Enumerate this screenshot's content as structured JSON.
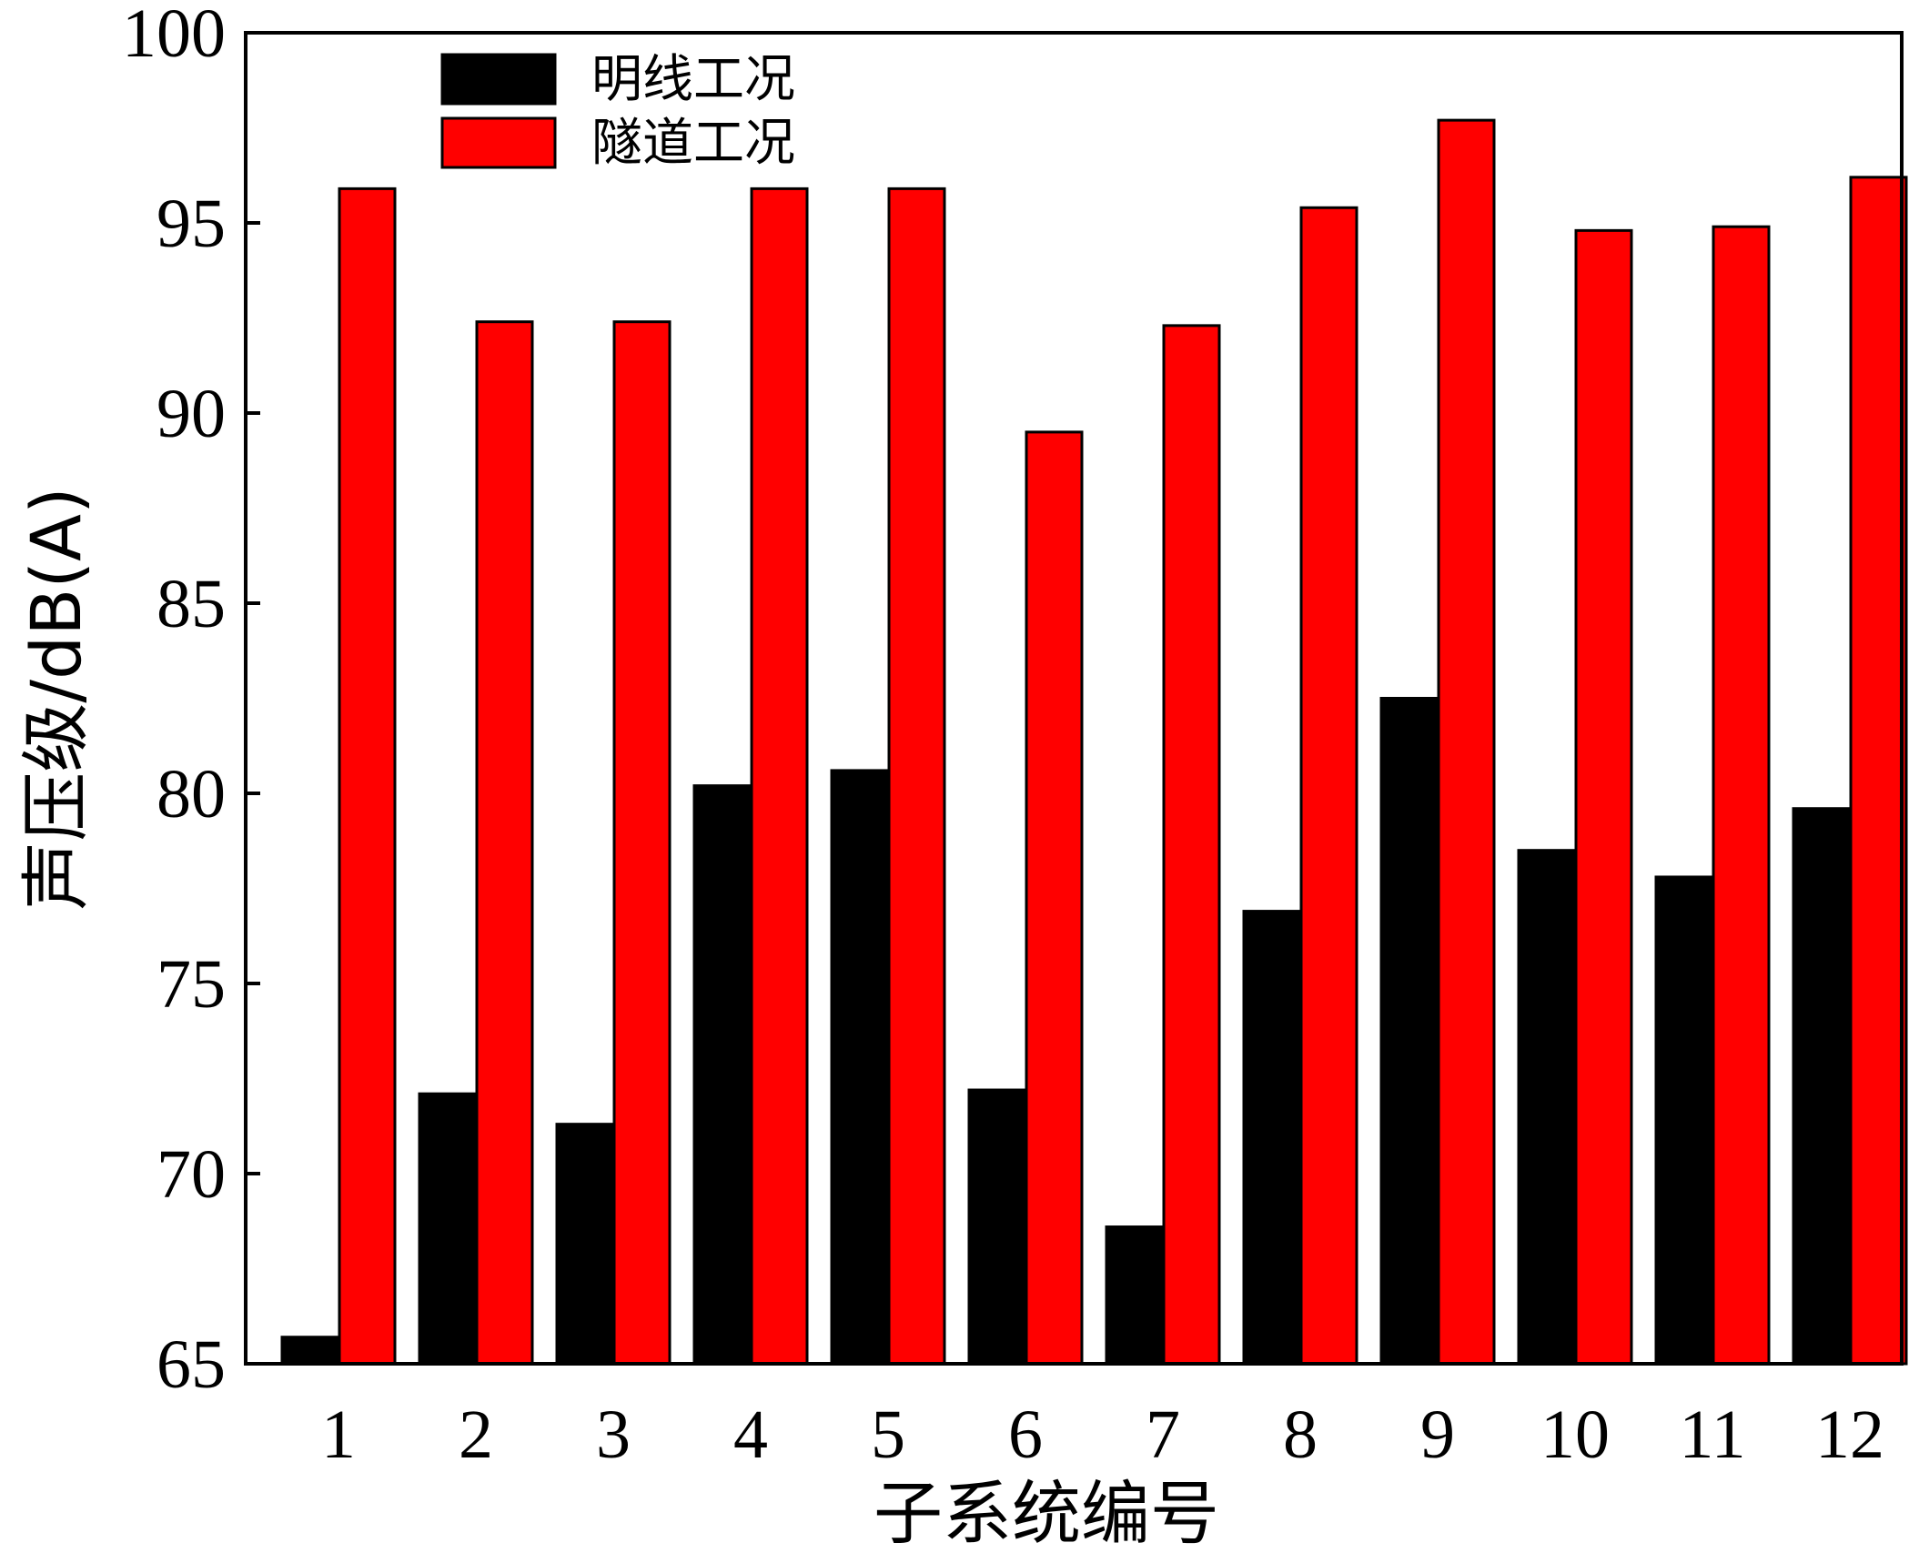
{
  "chart_data": {
    "type": "bar",
    "categories": [
      "1",
      "2",
      "3",
      "4",
      "5",
      "6",
      "7",
      "8",
      "9",
      "10",
      "11",
      "12"
    ],
    "series": [
      {
        "name": "明线工况",
        "color": "#000000",
        "values": [
          65.7,
          72.1,
          71.3,
          80.2,
          80.6,
          72.2,
          68.6,
          76.9,
          82.5,
          78.5,
          77.8,
          79.6
        ]
      },
      {
        "name": "隧道工况",
        "color": "#ff0000",
        "values": [
          95.9,
          92.4,
          92.4,
          95.9,
          95.9,
          89.5,
          92.3,
          95.4,
          97.7,
          94.8,
          94.9,
          96.2
        ]
      }
    ],
    "xlabel": "子系统编号",
    "ylabel": "声压级/dB(A)",
    "ylim": [
      65,
      100
    ],
    "yticks": [
      65,
      70,
      75,
      80,
      85,
      90,
      95,
      100
    ],
    "legend_position": "top-left",
    "grid": false
  }
}
